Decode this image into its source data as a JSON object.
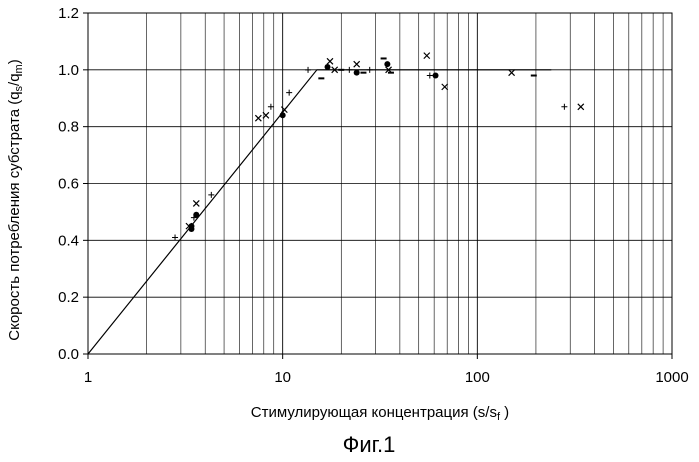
{
  "chart_data": {
    "type": "scatter",
    "title": "",
    "xlabel": "Стимулирующая концентрация (s/s",
    "xlabel_sub": "f",
    "xlabel_close": " )",
    "ylabel": "Скорость потребления субстрата (q",
    "ylabel_sub1": "s",
    "ylabel_mid": "/q",
    "ylabel_sub2": "m",
    "ylabel_close": ")",
    "caption": "Фиг.1",
    "x_scale": "log",
    "xlim": [
      1,
      1000
    ],
    "ylim": [
      0.0,
      1.2
    ],
    "x_ticks": [
      {
        "value": 1,
        "label": "1"
      },
      {
        "value": 10,
        "label": "10"
      },
      {
        "value": 100,
        "label": "100"
      },
      {
        "value": 1000,
        "label": "1000"
      }
    ],
    "y_ticks": [
      {
        "value": 0.0,
        "label": "0.0"
      },
      {
        "value": 0.2,
        "label": "0.2"
      },
      {
        "value": 0.4,
        "label": "0.4"
      },
      {
        "value": 0.6,
        "label": "0.6"
      },
      {
        "value": 0.8,
        "label": "0.8"
      },
      {
        "value": 1.0,
        "label": "1.0"
      },
      {
        "value": 1.2,
        "label": "1.2"
      }
    ],
    "grid": true,
    "model_line": [
      [
        1,
        0.0
      ],
      [
        15,
        1.0
      ],
      [
        240,
        1.0
      ]
    ],
    "points": [
      {
        "x": 2.8,
        "y": 0.41,
        "marker": "plus"
      },
      {
        "x": 3.3,
        "y": 0.45,
        "marker": "cross"
      },
      {
        "x": 3.4,
        "y": 0.44,
        "marker": "dot"
      },
      {
        "x": 3.4,
        "y": 0.45,
        "marker": "dot"
      },
      {
        "x": 3.5,
        "y": 0.48,
        "marker": "plus"
      },
      {
        "x": 3.6,
        "y": 0.49,
        "marker": "dot"
      },
      {
        "x": 3.6,
        "y": 0.53,
        "marker": "cross"
      },
      {
        "x": 4.3,
        "y": 0.56,
        "marker": "plus"
      },
      {
        "x": 7.5,
        "y": 0.83,
        "marker": "cross"
      },
      {
        "x": 8.2,
        "y": 0.84,
        "marker": "cross"
      },
      {
        "x": 8.7,
        "y": 0.87,
        "marker": "plus"
      },
      {
        "x": 10.0,
        "y": 0.84,
        "marker": "dot"
      },
      {
        "x": 10.2,
        "y": 0.86,
        "marker": "cross"
      },
      {
        "x": 10.8,
        "y": 0.92,
        "marker": "plus"
      },
      {
        "x": 13.5,
        "y": 1.0,
        "marker": "plus"
      },
      {
        "x": 15.8,
        "y": 0.97,
        "marker": "dash"
      },
      {
        "x": 17.0,
        "y": 1.01,
        "marker": "dot"
      },
      {
        "x": 17.5,
        "y": 1.03,
        "marker": "cross"
      },
      {
        "x": 18.5,
        "y": 1.0,
        "marker": "cross"
      },
      {
        "x": 20.0,
        "y": 1.0,
        "marker": "dash"
      },
      {
        "x": 22.0,
        "y": 1.0,
        "marker": "plus"
      },
      {
        "x": 24.0,
        "y": 0.99,
        "marker": "dot"
      },
      {
        "x": 24.0,
        "y": 1.02,
        "marker": "cross"
      },
      {
        "x": 26.0,
        "y": 0.99,
        "marker": "dash"
      },
      {
        "x": 28.0,
        "y": 1.0,
        "marker": "plus"
      },
      {
        "x": 33.0,
        "y": 1.04,
        "marker": "dash"
      },
      {
        "x": 34.5,
        "y": 1.02,
        "marker": "dot"
      },
      {
        "x": 35.0,
        "y": 1.0,
        "marker": "cross"
      },
      {
        "x": 36.0,
        "y": 0.99,
        "marker": "dash"
      },
      {
        "x": 55.0,
        "y": 1.05,
        "marker": "cross"
      },
      {
        "x": 57.0,
        "y": 0.98,
        "marker": "plus"
      },
      {
        "x": 61.0,
        "y": 0.98,
        "marker": "dot"
      },
      {
        "x": 68.0,
        "y": 0.94,
        "marker": "cross"
      },
      {
        "x": 150.0,
        "y": 0.99,
        "marker": "cross"
      },
      {
        "x": 195.0,
        "y": 0.98,
        "marker": "dash"
      },
      {
        "x": 280.0,
        "y": 0.87,
        "marker": "plus"
      },
      {
        "x": 340.0,
        "y": 0.87,
        "marker": "cross"
      }
    ]
  }
}
